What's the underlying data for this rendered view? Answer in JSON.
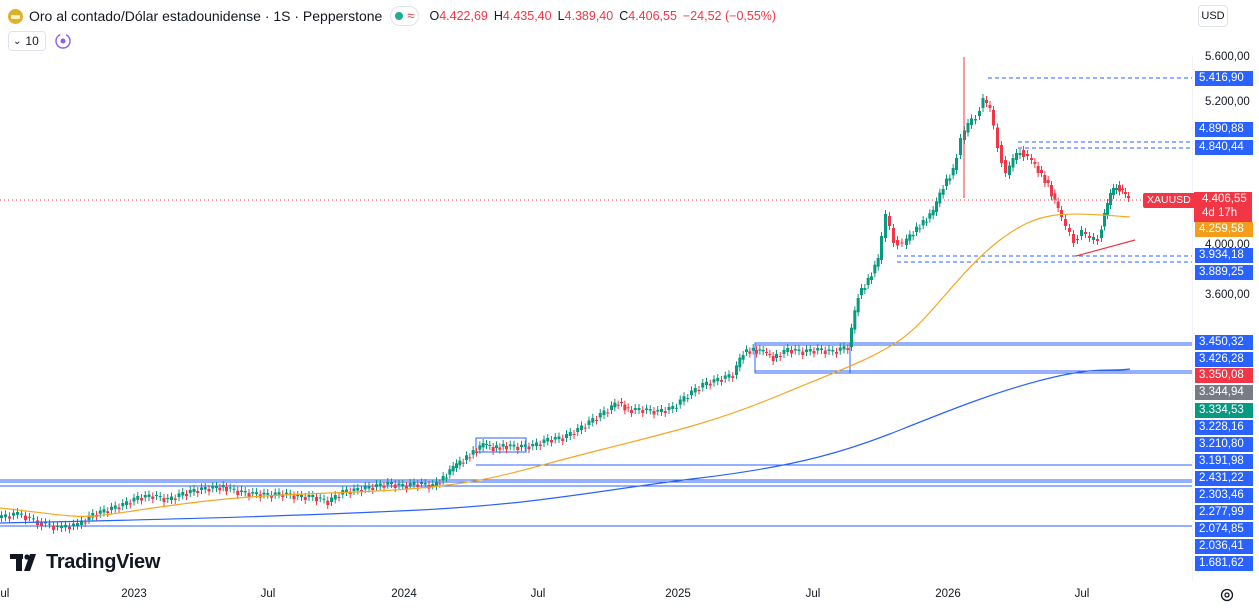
{
  "header": {
    "symbol_title": "Oro al contado/Dólar estadounidense · 1S · Pepperstone",
    "ohlc": [
      {
        "k": "O",
        "v": "4.422,69"
      },
      {
        "k": "H",
        "v": "4.435,40"
      },
      {
        "k": "L",
        "v": "4.389,40"
      },
      {
        "k": "C",
        "v": "4.406,55"
      },
      {
        "k": "",
        "v": "−24,52 (−0,55%)"
      }
    ],
    "interval_label": "10",
    "currency": "USD",
    "status_wave": "≈"
  },
  "colors": {
    "up": "#089981",
    "down": "#f23645",
    "ma_short": "#f5a623",
    "ma_long": "#2962ff",
    "hline": "#2962ff"
  },
  "symbol_badge": "XAUUSD",
  "current_price": {
    "value": "4.406,55",
    "countdown": "4d 17h"
  },
  "price_axis": {
    "ticks": [
      "5.600,00",
      "5.200,00",
      "4.000,00",
      "3.600,00"
    ],
    "labels": [
      {
        "text": "5.416,90",
        "color": "#2962ff"
      },
      {
        "text": "4.890,88",
        "color": "#2962ff"
      },
      {
        "text": "4.840,44",
        "color": "#2962ff"
      },
      {
        "text": "4.259,58",
        "color": "#f59d1a"
      },
      {
        "text": "3.934,18",
        "color": "#2962ff"
      },
      {
        "text": "3.889,25",
        "color": "#2962ff"
      },
      {
        "text": "3.450,32",
        "color": "#2962ff"
      },
      {
        "text": "3.426,28",
        "color": "#2962ff"
      },
      {
        "text": "3.350,08",
        "color": "#f23645"
      },
      {
        "text": "3.344,94",
        "color": "#787b86"
      },
      {
        "text": "3.334,53",
        "color": "#089981"
      },
      {
        "text": "3.228,16",
        "color": "#2962ff"
      },
      {
        "text": "3.210,80",
        "color": "#2962ff"
      },
      {
        "text": "3.191,98",
        "color": "#2962ff"
      },
      {
        "text": "2.431,22",
        "color": "#2962ff"
      },
      {
        "text": "2.303,46",
        "color": "#2962ff"
      },
      {
        "text": "2.277,99",
        "color": "#2962ff"
      },
      {
        "text": "2.074,85",
        "color": "#2962ff"
      },
      {
        "text": "2.036,41",
        "color": "#2962ff"
      },
      {
        "text": "1.681,62",
        "color": "#2962ff"
      }
    ]
  },
  "time_axis": [
    "Jul",
    "2023",
    "Jul",
    "2024",
    "Jul",
    "2025",
    "Jul",
    "2026",
    "Jul"
  ],
  "logo_text": "TradingView"
}
